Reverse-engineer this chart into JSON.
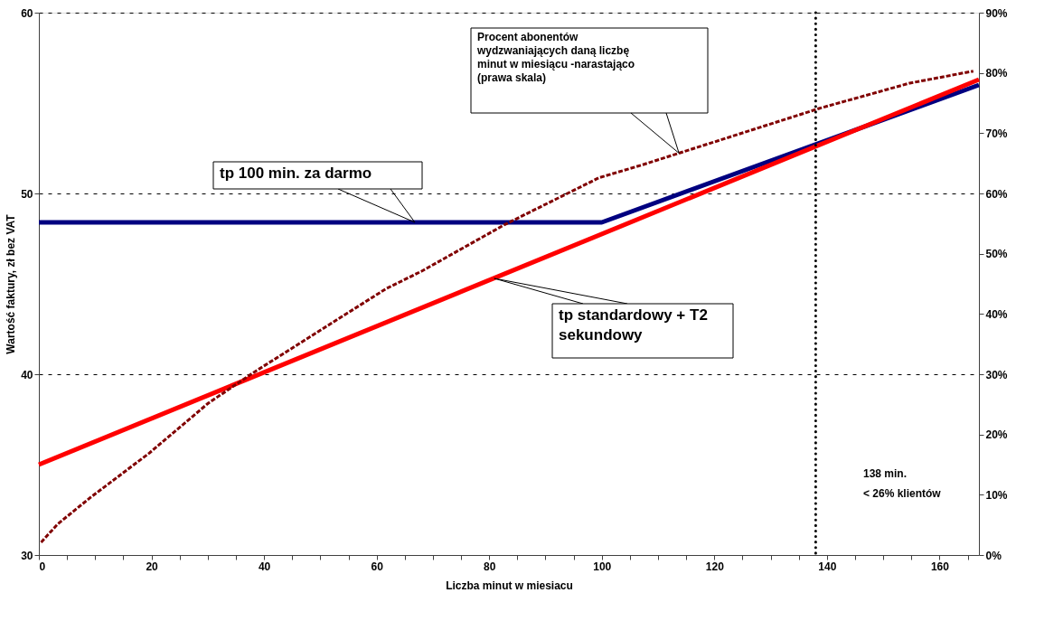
{
  "chart_data": {
    "type": "line",
    "xlabel": "Liczba minut w miesiacu",
    "ylabel": "Wartość faktury, zł bez VAT",
    "xlim": [
      0,
      167
    ],
    "xticks": [
      0,
      {
        "value": 5,
        "label": null
      },
      {
        "value": 10,
        "label": null
      },
      {
        "value": 15,
        "label": null
      },
      20,
      {
        "value": 25,
        "label": null
      },
      {
        "value": 30,
        "label": null
      },
      {
        "value": 35,
        "label": null
      },
      40,
      {
        "value": 45,
        "label": null
      },
      {
        "value": 50,
        "label": null
      },
      {
        "value": 55,
        "label": null
      },
      60,
      {
        "value": 65,
        "label": null
      },
      {
        "value": 70,
        "label": null
      },
      {
        "value": 75,
        "label": null
      },
      80,
      {
        "value": 85,
        "label": null
      },
      {
        "value": 90,
        "label": null
      },
      {
        "value": 95,
        "label": null
      },
      100,
      {
        "value": 105,
        "label": null
      },
      {
        "value": 110,
        "label": null
      },
      {
        "value": 115,
        "label": null
      },
      120,
      {
        "value": 125,
        "label": null
      },
      {
        "value": 130,
        "label": null
      },
      {
        "value": 135,
        "label": null
      },
      140,
      {
        "value": 145,
        "label": null
      },
      {
        "value": 150,
        "label": null
      },
      {
        "value": 155,
        "label": null
      },
      160,
      {
        "value": 165,
        "label": null
      }
    ],
    "ylim": [
      30,
      60
    ],
    "yticks": [
      30,
      40,
      50,
      60
    ],
    "y2lim": [
      0,
      90
    ],
    "y2ticks": [
      {
        "value": 0,
        "label": "0%"
      },
      {
        "value": 10,
        "label": "10%"
      },
      {
        "value": 20,
        "label": "20%"
      },
      {
        "value": 30,
        "label": "30%"
      },
      {
        "value": 40,
        "label": "40%"
      },
      {
        "value": 50,
        "label": "50%"
      },
      {
        "value": 60,
        "label": "60%"
      },
      {
        "value": 70,
        "label": "70%"
      },
      {
        "value": 80,
        "label": "80%"
      },
      {
        "value": 90,
        "label": "90%"
      }
    ],
    "grid": "y",
    "ref_lines": [
      {
        "axis": "x",
        "value": 138,
        "line_style": "dotted",
        "color": "#000000"
      }
    ],
    "annotations": [
      {
        "text": "tp 100 min. za darmo",
        "x": 66.8,
        "y": 48.4
      },
      {
        "text": "tp standardowy + T2\nsekundowy",
        "x": 80.9,
        "y": 45.3
      },
      "Procent abonentów\nwydzwaniających daną liczbę\nminut w miesiącu -narastająco\n(prawa skala)",
      "138 min.\n< 26% klientów"
    ],
    "series": [
      {
        "color": "#000080",
        "line_style": "solid",
        "x": [
          0,
          100,
          167
        ],
        "values": [
          48.4,
          48.4,
          56.0
        ]
      },
      {
        "color": "#ff0000",
        "line_style": "solid",
        "x": [
          0,
          167
        ],
        "values": [
          35.0,
          56.3
        ]
      },
      {
        "color": "#800000",
        "line_style": "dashed",
        "axis": "y2",
        "x": [
          0.4,
          3.3,
          9.1,
          19.6,
          30.1,
          38.5,
          51.2,
          61.7,
          68.0,
          82.7,
          99.5,
          107.4,
          123.2,
          138.6,
          154.7,
          166.0
        ],
        "values": [
          2.1,
          5.1,
          9.5,
          16.9,
          25.2,
          30.5,
          38.0,
          44.2,
          47.1,
          54.8,
          62.6,
          64.8,
          69.5,
          74.1,
          78.3,
          80.3
        ]
      }
    ]
  }
}
